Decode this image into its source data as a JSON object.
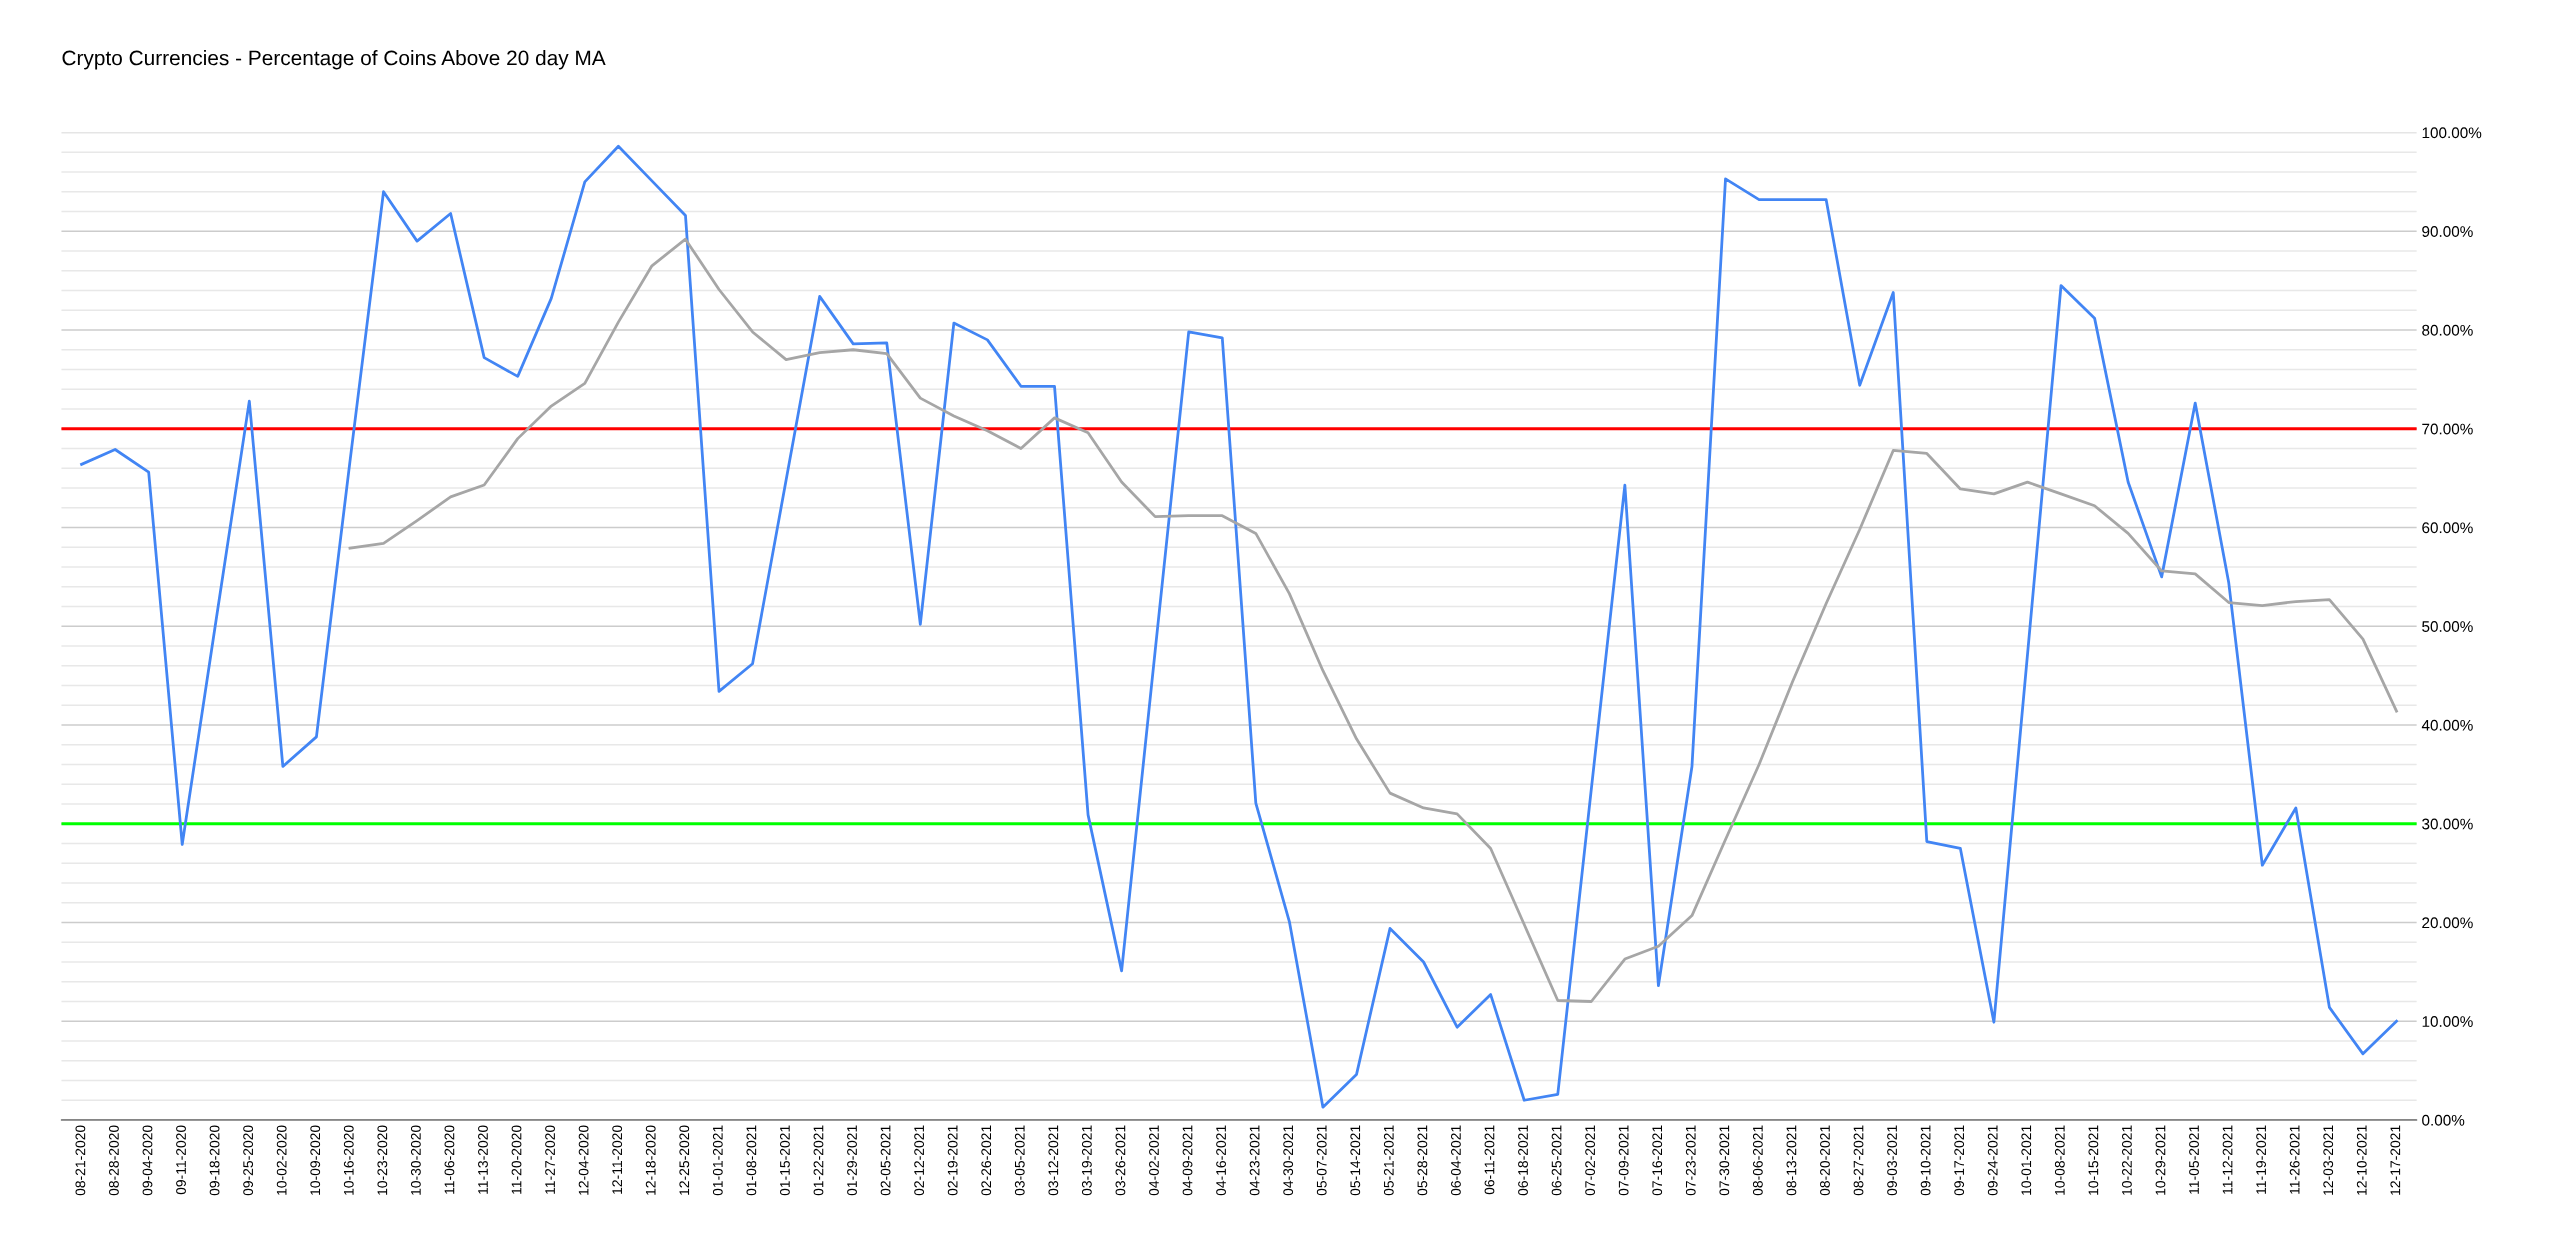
{
  "chart_data": {
    "type": "line",
    "title": "Crypto Currencies - Percentage of Coins Above 20 day MA",
    "categories": [
      "08-21-2020",
      "08-28-2020",
      "09-04-2020",
      "09-11-2020",
      "09-18-2020",
      "09-25-2020",
      "10-02-2020",
      "10-09-2020",
      "10-16-2020",
      "10-23-2020",
      "10-30-2020",
      "11-06-2020",
      "11-13-2020",
      "11-20-2020",
      "11-27-2020",
      "12-04-2020",
      "12-11-2020",
      "12-18-2020",
      "12-25-2020",
      "01-01-2021",
      "01-08-2021",
      "01-15-2021",
      "01-22-2021",
      "01-29-2021",
      "02-05-2021",
      "02-12-2021",
      "02-19-2021",
      "02-26-2021",
      "03-05-2021",
      "03-12-2021",
      "03-19-2021",
      "03-26-2021",
      "04-02-2021",
      "04-09-2021",
      "04-16-2021",
      "04-23-2021",
      "04-30-2021",
      "05-07-2021",
      "05-14-2021",
      "05-21-2021",
      "05-28-2021",
      "06-04-2021",
      "06-11-2021",
      "06-18-2021",
      "06-25-2021",
      "07-02-2021",
      "07-09-2021",
      "07-16-2021",
      "07-23-2021",
      "07-30-2021",
      "08-06-2021",
      "08-13-2021",
      "08-20-2021",
      "08-27-2021",
      "09-03-2021",
      "09-10-2021",
      "09-17-2021",
      "09-24-2021",
      "10-01-2021",
      "10-08-2021",
      "10-15-2021",
      "10-22-2021",
      "10-29-2021",
      "11-05-2021",
      "11-12-2021",
      "11-19-2021",
      "11-26-2021",
      "12-03-2021",
      "12-10-2021",
      "12-17-2021"
    ],
    "series": [
      {
        "color": "#4285f4",
        "values": [
          66.4,
          67.9,
          65.6,
          27.9,
          50.4,
          72.8,
          35.8,
          38.8,
          66.7,
          94.0,
          89.0,
          91.8,
          77.2,
          75.3,
          83.2,
          95.0,
          98.6,
          95.1,
          91.6,
          43.4,
          46.2,
          64.8,
          83.4,
          78.6,
          78.7,
          50.2,
          80.7,
          79.0,
          74.3,
          74.3,
          30.9,
          15.1,
          47.5,
          79.8,
          79.2,
          32.1,
          20.1,
          1.3,
          4.6,
          19.4,
          16.0,
          9.4,
          12.7,
          2.0,
          2.6,
          33.5,
          64.3,
          13.6,
          35.8,
          95.3,
          93.2,
          93.2,
          93.2,
          74.4,
          83.8,
          28.2,
          27.5,
          9.9,
          47.1,
          84.5,
          81.2,
          64.6,
          55.0,
          72.6,
          54.4,
          25.8,
          31.6,
          11.4,
          6.7,
          10.0
        ]
      },
      {
        "color": "#a6a6a6",
        "values": [
          null,
          null,
          null,
          null,
          null,
          null,
          null,
          null,
          57.9,
          58.4,
          60.7,
          63.1,
          64.3,
          69.0,
          72.3,
          74.6,
          80.8,
          86.5,
          89.2,
          84.1,
          79.8,
          77.0,
          77.7,
          78.0,
          77.6,
          73.1,
          71.3,
          69.8,
          68.0,
          71.1,
          69.6,
          64.6,
          61.1,
          61.2,
          61.2,
          59.4,
          53.3,
          45.5,
          38.6,
          33.1,
          31.6,
          31.0,
          27.5,
          19.8,
          12.1,
          12.0,
          16.3,
          17.6,
          20.7,
          28.4,
          36.0,
          44.4,
          52.3,
          59.8,
          67.8,
          67.5,
          63.9,
          63.4,
          64.6,
          63.4,
          62.2,
          59.4,
          55.6,
          55.3,
          52.4,
          52.1,
          52.5,
          52.7,
          48.7,
          41.4
        ]
      }
    ],
    "ylim": [
      0,
      100
    ],
    "yticks": [
      {
        "value": 0,
        "label": "0.00%"
      },
      {
        "value": 2,
        "label": null
      },
      {
        "value": 4,
        "label": null
      },
      {
        "value": 6,
        "label": null
      },
      {
        "value": 8,
        "label": null
      },
      {
        "value": 10,
        "label": "10.00%"
      },
      {
        "value": 12,
        "label": null
      },
      {
        "value": 14,
        "label": null
      },
      {
        "value": 16,
        "label": null
      },
      {
        "value": 18,
        "label": null
      },
      {
        "value": 20,
        "label": "20.00%"
      },
      {
        "value": 22,
        "label": null
      },
      {
        "value": 24,
        "label": null
      },
      {
        "value": 26,
        "label": null
      },
      {
        "value": 28,
        "label": null
      },
      {
        "value": 30,
        "label": "30.00%"
      },
      {
        "value": 32,
        "label": null
      },
      {
        "value": 34,
        "label": null
      },
      {
        "value": 36,
        "label": null
      },
      {
        "value": 38,
        "label": null
      },
      {
        "value": 40,
        "label": "40.00%"
      },
      {
        "value": 42,
        "label": null
      },
      {
        "value": 44,
        "label": null
      },
      {
        "value": 46,
        "label": null
      },
      {
        "value": 48,
        "label": null
      },
      {
        "value": 50,
        "label": "50.00%"
      },
      {
        "value": 52,
        "label": null
      },
      {
        "value": 54,
        "label": null
      },
      {
        "value": 56,
        "label": null
      },
      {
        "value": 58,
        "label": null
      },
      {
        "value": 60,
        "label": "60.00%"
      },
      {
        "value": 62,
        "label": null
      },
      {
        "value": 64,
        "label": null
      },
      {
        "value": 66,
        "label": null
      },
      {
        "value": 68,
        "label": null
      },
      {
        "value": 70,
        "label": "70.00%"
      },
      {
        "value": 72,
        "label": null
      },
      {
        "value": 74,
        "label": null
      },
      {
        "value": 76,
        "label": null
      },
      {
        "value": 78,
        "label": null
      },
      {
        "value": 80,
        "label": "80.00%"
      },
      {
        "value": 82,
        "label": null
      },
      {
        "value": 84,
        "label": null
      },
      {
        "value": 86,
        "label": null
      },
      {
        "value": 88,
        "label": null
      },
      {
        "value": 90,
        "label": "90.00%"
      },
      {
        "value": 92,
        "label": null
      },
      {
        "value": 94,
        "label": null
      },
      {
        "value": 96,
        "label": null
      },
      {
        "value": 98,
        "label": null
      },
      {
        "value": 100,
        "label": "100.00%"
      }
    ],
    "grid": "y",
    "ref_lines": [
      {
        "axis": "y",
        "value": 70,
        "color": "#ff0000"
      },
      {
        "axis": "y",
        "value": 30,
        "color": "#00ff00"
      }
    ]
  }
}
